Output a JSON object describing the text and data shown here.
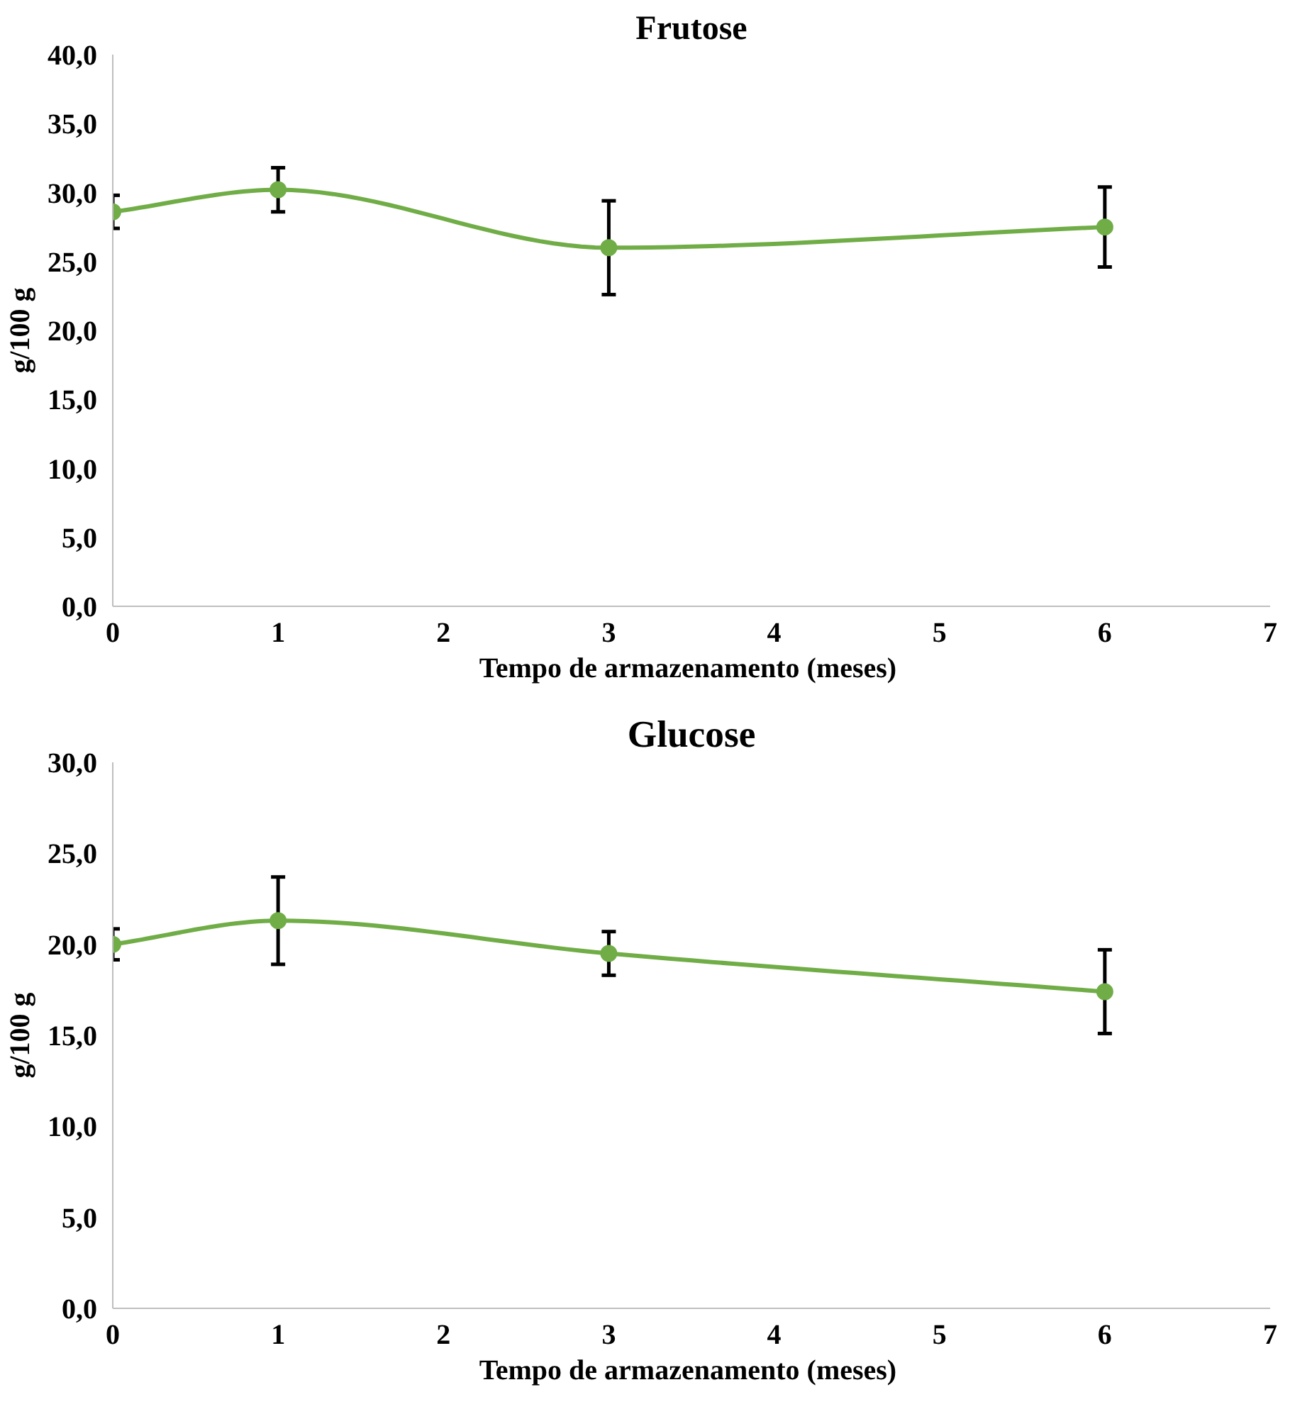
{
  "chart_data": [
    {
      "type": "line",
      "title": "Frutose",
      "xlabel": "Tempo de armazenamento  (meses)",
      "ylabel": "g/100 g",
      "x": [
        0,
        1,
        3,
        6
      ],
      "series": [
        {
          "color": "#70ad47",
          "values": [
            28.6,
            30.2,
            26.0,
            27.5
          ],
          "errors": [
            1.2,
            1.6,
            3.4,
            2.9
          ]
        }
      ],
      "xlim": [
        0,
        7
      ],
      "xticks": [
        0,
        1,
        2,
        3,
        4,
        5,
        6,
        7
      ],
      "ylim": [
        0,
        40
      ],
      "yticks": [
        {
          "value": 0,
          "label": "0,0"
        },
        {
          "value": 5,
          "label": "5,0"
        },
        {
          "value": 10,
          "label": "10,0"
        },
        {
          "value": 15,
          "label": "15,0"
        },
        {
          "value": 20,
          "label": "20,0"
        },
        {
          "value": 25,
          "label": "25,0"
        },
        {
          "value": 30,
          "label": "30,0"
        },
        {
          "value": 35,
          "label": "35,0"
        },
        {
          "value": 40,
          "label": "40,0"
        }
      ],
      "grid": false,
      "marker": "circle",
      "line_style": "solid"
    },
    {
      "type": "line",
      "title": "Glucose",
      "xlabel": "Tempo de armazenamento  (meses)",
      "ylabel": "g/100 g",
      "x": [
        0,
        1,
        3,
        6
      ],
      "series": [
        {
          "color": "#70ad47",
          "values": [
            20.0,
            21.3,
            19.5,
            17.4
          ],
          "errors": [
            0.85,
            2.4,
            1.2,
            2.3
          ]
        }
      ],
      "xlim": [
        0,
        7
      ],
      "xticks": [
        0,
        1,
        2,
        3,
        4,
        5,
        6,
        7
      ],
      "ylim": [
        0,
        30
      ],
      "yticks": [
        {
          "value": 0,
          "label": "0,0"
        },
        {
          "value": 5,
          "label": "5,0"
        },
        {
          "value": 10,
          "label": "10,0"
        },
        {
          "value": 15,
          "label": "15,0"
        },
        {
          "value": 20,
          "label": "20,0"
        },
        {
          "value": 25,
          "label": "25,0"
        },
        {
          "value": 30,
          "label": "30,0"
        }
      ],
      "grid": false,
      "marker": "circle",
      "line_style": "solid"
    }
  ]
}
